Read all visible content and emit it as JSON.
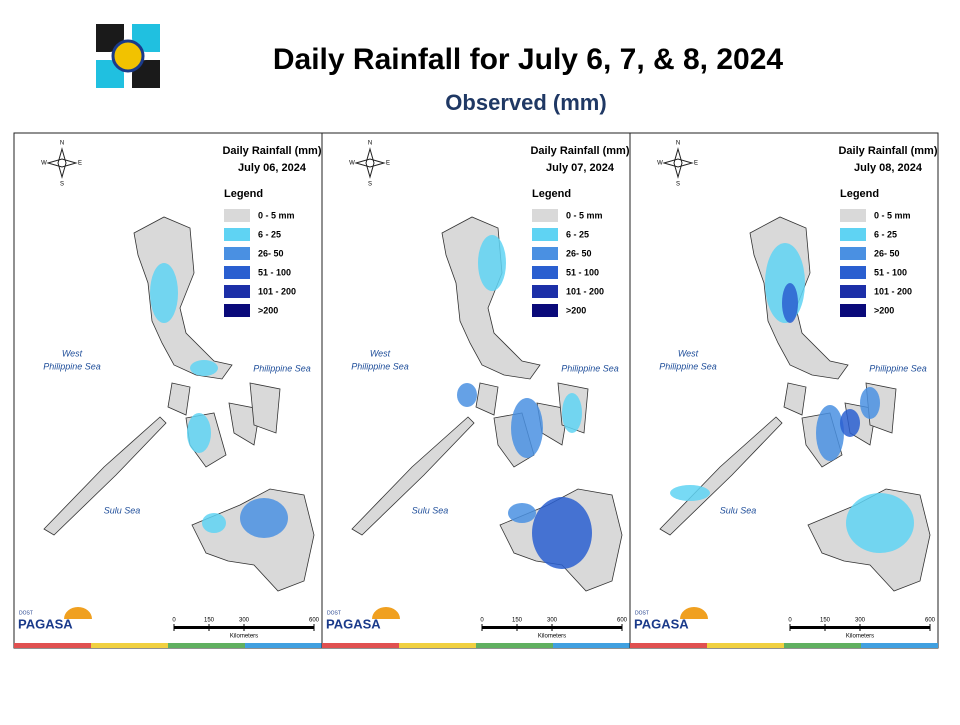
{
  "header": {
    "title": "Daily Rainfall for July 6, 7, & 8, 2024",
    "subtitle": "Observed (mm)"
  },
  "maps": [
    {
      "title": "Daily Rainfall (mm)",
      "date": "July 06, 2024"
    },
    {
      "title": "Daily Rainfall (mm)",
      "date": "July 07, 2024"
    },
    {
      "title": "Daily Rainfall (mm)",
      "date": "July 08, 2024"
    }
  ],
  "legend": {
    "title": "Legend",
    "items": [
      {
        "label": "0 - 5 mm",
        "color": "#d9d9d9"
      },
      {
        "label": "6 - 25",
        "color": "#5fd3f3"
      },
      {
        "label": "26- 50",
        "color": "#4a90e2"
      },
      {
        "label": "51 - 100",
        "color": "#2a5fd0"
      },
      {
        "label": "101 - 200",
        "color": "#1c2fa8"
      },
      {
        "label": ">200",
        "color": "#0a0a7a"
      }
    ]
  },
  "seas": {
    "west": [
      "West",
      "Philippine Sea"
    ],
    "east": "Philippine Sea",
    "sulu": "Sulu Sea"
  },
  "compass": {
    "n": "N",
    "e": "E",
    "s": "S",
    "w": "W"
  },
  "scale": {
    "ticks": [
      0,
      150,
      300,
      600
    ],
    "unit": "Kilometers"
  },
  "logo": {
    "agency": "DOST",
    "name": "PAGASA"
  }
}
